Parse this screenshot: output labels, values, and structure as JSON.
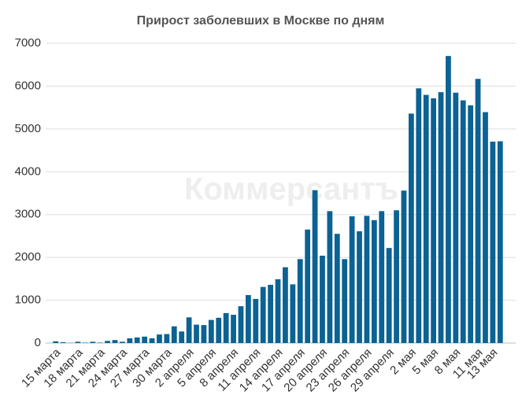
{
  "chart_data": {
    "type": "bar",
    "title": "Прирост заболевших в Москве по дням",
    "watermark": "Коммерсантъ",
    "categories": [
      "15 марта",
      null,
      null,
      "18 марта",
      null,
      null,
      "21 марта",
      null,
      null,
      "24 марта",
      null,
      null,
      "27 марта",
      null,
      null,
      "30 марта",
      null,
      null,
      "2 апреля",
      null,
      null,
      "5 апреля",
      null,
      null,
      "8 апреля",
      null,
      null,
      "11 апреля",
      null,
      null,
      "14 апреля",
      null,
      null,
      "17 апреля",
      null,
      null,
      "20 апреля",
      null,
      null,
      "23 апреля",
      null,
      null,
      "26 апреля",
      null,
      null,
      "29 апреля",
      null,
      null,
      "2 мая",
      null,
      null,
      "5 мая",
      null,
      null,
      "8 мая",
      null,
      null,
      "11 мая",
      null,
      "13 мая",
      null
    ],
    "values": [
      40,
      20,
      5,
      30,
      10,
      30,
      10,
      50,
      70,
      30,
      110,
      130,
      150,
      110,
      200,
      210,
      390,
      270,
      600,
      430,
      420,
      540,
      590,
      700,
      660,
      860,
      1120,
      1030,
      1310,
      1360,
      1490,
      1770,
      1370,
      1960,
      2650,
      3570,
      2040,
      3080,
      2550,
      1960,
      2960,
      2610,
      2970,
      2870,
      3080,
      2220,
      3100,
      3560,
      5358,
      5948,
      5795,
      5714,
      5858,
      6703,
      5846,
      5667,
      5551,
      6169,
      5392,
      4703,
      4712
    ],
    "color": "#0b6293",
    "ylim": [
      0,
      7000
    ],
    "yticks": [
      0,
      1000,
      2000,
      3000,
      4000,
      5000,
      6000,
      7000
    ],
    "grid": true
  }
}
